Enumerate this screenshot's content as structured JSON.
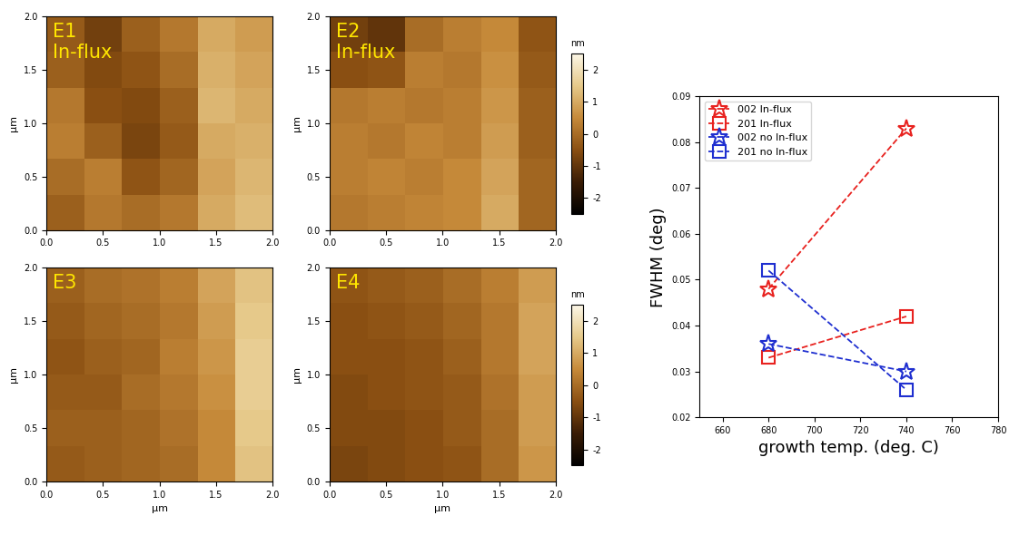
{
  "chart_data": [
    {
      "type": "heatmap",
      "annotation": [
        "E1",
        "In-flux"
      ],
      "y_label": "µm",
      "xlim": [
        0,
        2
      ],
      "ylim": [
        0,
        2
      ],
      "xticks": [
        {
          "value": 0,
          "label": "0.0"
        },
        {
          "value": 0.5,
          "label": "0.5"
        },
        {
          "value": 1,
          "label": "1.0"
        },
        {
          "value": 1.5,
          "label": "1.5"
        },
        {
          "value": 2,
          "label": "2.0"
        }
      ],
      "yticks": [
        {
          "value": 0,
          "label": "0.0"
        },
        {
          "value": 0.5,
          "label": "0.5"
        },
        {
          "value": 1,
          "label": "1.0"
        },
        {
          "value": 1.5,
          "label": "1.5"
        },
        {
          "value": 2,
          "label": "2.0"
        }
      ],
      "colorbar_range": [
        -2.5,
        2.5
      ],
      "cells": [
        [
          -0.3,
          -0.8,
          -0.2,
          0.2,
          1.0,
          0.8
        ],
        [
          -0.2,
          -0.6,
          -0.4,
          0.0,
          1.1,
          0.9
        ],
        [
          0.2,
          -0.5,
          -0.6,
          -0.2,
          1.2,
          1.0
        ],
        [
          0.3,
          -0.2,
          -0.7,
          -0.3,
          1.0,
          1.1
        ],
        [
          0.0,
          0.3,
          -0.4,
          -0.1,
          0.9,
          1.2
        ],
        [
          -0.2,
          0.2,
          0.0,
          0.2,
          1.0,
          1.3
        ]
      ]
    },
    {
      "type": "heatmap",
      "annotation": [
        "E2",
        "In-flux"
      ],
      "y_label": "µm",
      "xlim": [
        0,
        2
      ],
      "ylim": [
        0,
        2
      ],
      "xticks": [
        {
          "value": 0,
          "label": "0.0"
        },
        {
          "value": 0.5,
          "label": "0.5"
        },
        {
          "value": 1,
          "label": "1.0"
        },
        {
          "value": 1.5,
          "label": "1.5"
        },
        {
          "value": 2,
          "label": "2.0"
        }
      ],
      "yticks": [
        {
          "value": 0,
          "label": "0.0"
        },
        {
          "value": 0.5,
          "label": "0.5"
        },
        {
          "value": 1,
          "label": "1.0"
        },
        {
          "value": 1.5,
          "label": "1.5"
        },
        {
          "value": 2,
          "label": "2.0"
        }
      ],
      "colorbar_range": [
        -2.5,
        2.5
      ],
      "colorbar_ticks": [
        -2,
        -1,
        0,
        1,
        2
      ],
      "colorbar_label": "nm",
      "cells": [
        [
          -0.8,
          -1.0,
          0.0,
          0.3,
          0.5,
          -0.4
        ],
        [
          -0.5,
          -0.4,
          0.3,
          0.2,
          0.6,
          -0.3
        ],
        [
          0.2,
          0.3,
          0.2,
          0.3,
          0.7,
          -0.2
        ],
        [
          0.3,
          0.2,
          0.4,
          0.3,
          0.8,
          -0.2
        ],
        [
          0.3,
          0.4,
          0.3,
          0.5,
          0.9,
          -0.1
        ],
        [
          0.2,
          0.3,
          0.4,
          0.5,
          1.0,
          -0.1
        ]
      ]
    },
    {
      "type": "heatmap",
      "annotation": [
        "E3"
      ],
      "x_label": "µm",
      "y_label": "µm",
      "xlim": [
        0,
        2
      ],
      "ylim": [
        0,
        2
      ],
      "xticks": [
        {
          "value": 0,
          "label": "0.0"
        },
        {
          "value": 0.5,
          "label": "0.5"
        },
        {
          "value": 1,
          "label": "1.0"
        },
        {
          "value": 1.5,
          "label": "1.5"
        },
        {
          "value": 2,
          "label": "2.0"
        }
      ],
      "yticks": [
        {
          "value": 0,
          "label": "0.0"
        },
        {
          "value": 0.5,
          "label": "0.5"
        },
        {
          "value": 1,
          "label": "1.0"
        },
        {
          "value": 1.5,
          "label": "1.5"
        },
        {
          "value": 2,
          "label": "2.0"
        }
      ],
      "colorbar_range": [
        -2.5,
        2.5
      ],
      "cells": [
        [
          -0.2,
          0.0,
          0.1,
          0.3,
          0.9,
          1.4
        ],
        [
          -0.3,
          -0.1,
          0.0,
          0.2,
          0.8,
          1.5
        ],
        [
          -0.4,
          -0.2,
          -0.1,
          0.3,
          0.7,
          1.6
        ],
        [
          -0.3,
          -0.3,
          0.0,
          0.2,
          0.6,
          1.6
        ],
        [
          -0.2,
          -0.2,
          -0.1,
          0.1,
          0.5,
          1.5
        ],
        [
          -0.3,
          -0.2,
          -0.1,
          0.0,
          0.5,
          1.4
        ]
      ]
    },
    {
      "type": "heatmap",
      "annotation": [
        "E4"
      ],
      "x_label": "µm",
      "y_label": "µm",
      "xlim": [
        0,
        2
      ],
      "ylim": [
        0,
        2
      ],
      "xticks": [
        {
          "value": 0,
          "label": "0.0"
        },
        {
          "value": 0.5,
          "label": "0.5"
        },
        {
          "value": 1,
          "label": "1.0"
        },
        {
          "value": 1.5,
          "label": "1.5"
        },
        {
          "value": 2,
          "label": "2.0"
        }
      ],
      "yticks": [
        {
          "value": 0,
          "label": "0.0"
        },
        {
          "value": 0.5,
          "label": "0.5"
        },
        {
          "value": 1,
          "label": "1.0"
        },
        {
          "value": 1.5,
          "label": "1.5"
        },
        {
          "value": 2,
          "label": "2.0"
        }
      ],
      "colorbar_range": [
        -2.5,
        2.5
      ],
      "colorbar_ticks": [
        -2,
        -1,
        0,
        1,
        2
      ],
      "colorbar_label": "nm",
      "cells": [
        [
          -0.4,
          -0.3,
          -0.2,
          0.0,
          0.3,
          0.8
        ],
        [
          -0.5,
          -0.4,
          -0.3,
          -0.1,
          0.2,
          0.9
        ],
        [
          -0.5,
          -0.5,
          -0.4,
          -0.2,
          0.2,
          0.9
        ],
        [
          -0.6,
          -0.5,
          -0.4,
          -0.3,
          0.1,
          0.8
        ],
        [
          -0.6,
          -0.6,
          -0.5,
          -0.3,
          0.0,
          0.8
        ],
        [
          -0.7,
          -0.6,
          -0.5,
          -0.4,
          0.0,
          0.7
        ]
      ]
    },
    {
      "type": "line",
      "x_label": "growth temp. (deg. C)",
      "y_label": "FWHM (deg)",
      "x": [
        680,
        740
      ],
      "xlim": [
        650,
        780
      ],
      "xticks": [
        660,
        680,
        700,
        720,
        740,
        760,
        780
      ],
      "ylim": [
        0.02,
        0.09
      ],
      "yticks": [
        0.02,
        0.03,
        0.04,
        0.05,
        0.06,
        0.07,
        0.08,
        0.09
      ],
      "legend": "upper left",
      "line_style": "dashed",
      "series": [
        {
          "name": "002 In-flux",
          "color": "#e8221f",
          "marker": "star",
          "values": [
            0.048,
            0.083
          ]
        },
        {
          "name": "201 In-flux",
          "color": "#e8221f",
          "marker": "square",
          "values": [
            0.033,
            0.042
          ]
        },
        {
          "name": "002 no In-flux",
          "color": "#1f2fd0",
          "marker": "star",
          "values": [
            0.036,
            0.03
          ]
        },
        {
          "name": "201 no In-flux",
          "color": "#1f2fd0",
          "marker": "square",
          "values": [
            0.052,
            0.026
          ]
        }
      ]
    }
  ]
}
